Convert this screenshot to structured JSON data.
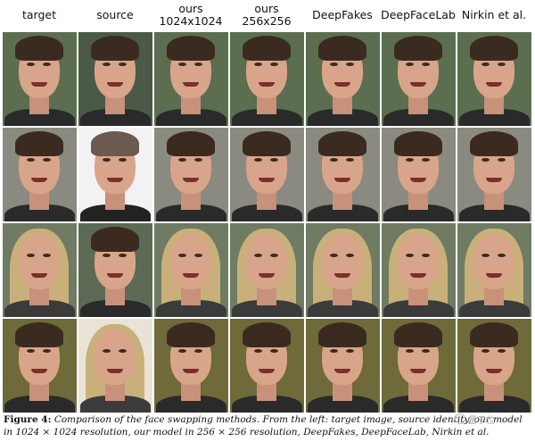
{
  "column_headers": [
    "target",
    "source",
    "ours\n1024x1024",
    "ours\n256x256",
    "DeepFakes",
    "DeepFaceLab",
    "Nirkin et al."
  ],
  "caption": {
    "label": "Figure 4:",
    "text": "Comparison of the face swapping methods. From the left: target image, source identity, our model in 1024 × 1024 resolution, our model in 256 × 256 resolution, DeepFakes, DeepFaceLab, Nirkin et al."
  },
  "watermark": {
    "text": "量子位"
  },
  "colors": {
    "row1_bg": "#5b6e4f",
    "row2_bg": "#8a8a80",
    "row3_bg": "#6f7b62",
    "row4_bg": "#6e6a3a",
    "skin": "#d9a58a",
    "hair_dark": "#3b2a20",
    "hair_blonde": "#c9b07a"
  }
}
